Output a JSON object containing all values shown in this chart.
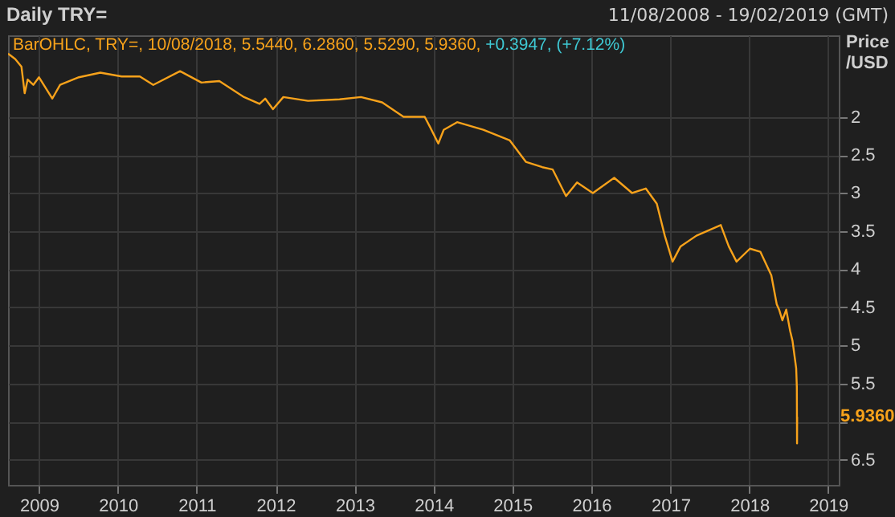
{
  "chart_data": {
    "type": "line",
    "title": "Daily TRY=",
    "subtitle": "11/08/2008 - 19/02/2019 (GMT)",
    "ylabel": "Price /USD",
    "annotations": [
      "BarOHLC, TRY=, 10/08/2018, 5.5440, 6.2860, 5.5290, 5.9360,",
      "+0.3947, (+7.12%)",
      {
        "text": "5.9360",
        "x": "2018-08-10",
        "y": 5.936
      }
    ],
    "series": [
      {
        "color": "#f7a21b",
        "x": [
          "2008-08-11",
          "2008-09-13",
          "2008-10-12",
          "2008-10-27",
          "2008-11-10",
          "2008-12-06",
          "2009-01-01",
          "2009-03-04",
          "2009-04-09",
          "2009-07-05",
          "2009-10-12",
          "2010-01-19",
          "2010-04-13",
          "2010-06-14",
          "2010-10-16",
          "2011-01-23",
          "2011-04-16",
          "2011-08-08",
          "2011-10-19",
          "2011-11-14",
          "2011-12-20",
          "2012-02-06",
          "2012-05-30",
          "2012-10-23",
          "2013-01-30",
          "2013-05-08",
          "2013-08-15",
          "2013-11-21",
          "2013-12-17",
          "2014-01-23",
          "2014-02-17",
          "2014-04-20",
          "2014-08-19",
          "2014-12-20",
          "2015-03-04",
          "2015-05-19",
          "2015-07-06",
          "2015-09-06",
          "2015-10-27",
          "2016-01-08",
          "2016-04-16",
          "2016-07-08",
          "2016-09-09",
          "2016-10-30",
          "2016-12-06",
          "2017-01-11",
          "2017-02-17",
          "2017-05-01",
          "2017-08-22",
          "2017-09-28",
          "2017-11-03",
          "2018-01-04",
          "2018-02-21",
          "2018-04-13",
          "2018-05-08",
          "2018-05-19",
          "2018-06-03",
          "2018-06-21",
          "2018-07-09",
          "2018-07-20",
          "2018-08-06",
          "2018-08-09",
          "2018-08-10T00:00",
          "2018-08-10T12:00"
        ],
        "values": [
          1.17,
          1.24,
          1.34,
          1.69,
          1.51,
          1.58,
          1.48,
          1.76,
          1.58,
          1.48,
          1.42,
          1.47,
          1.47,
          1.58,
          1.4,
          1.55,
          1.53,
          1.74,
          1.83,
          1.76,
          1.9,
          1.74,
          1.79,
          1.77,
          1.74,
          1.81,
          2.0,
          2.0,
          2.14,
          2.35,
          2.17,
          2.07,
          2.17,
          2.31,
          2.59,
          2.66,
          2.69,
          3.04,
          2.86,
          3.0,
          2.8,
          3.0,
          2.94,
          3.14,
          3.56,
          3.9,
          3.7,
          3.56,
          3.42,
          3.7,
          3.9,
          3.73,
          3.77,
          4.08,
          4.46,
          4.53,
          4.67,
          4.53,
          4.81,
          4.94,
          5.3,
          5.544,
          6.286,
          5.936
        ]
      }
    ],
    "xlim": [
      "2008-08-11",
      "2019-02-19"
    ],
    "xticks": [
      "2009",
      "2010",
      "2011",
      "2012",
      "2013",
      "2014",
      "2015",
      "2016",
      "2017",
      "2018",
      "2019"
    ],
    "ylim": [
      6.83,
      0.93
    ],
    "yticks": [
      2,
      2.5,
      3,
      3.5,
      4,
      4.5,
      5,
      5.5,
      {
        "value": 6,
        "label": null
      },
      6.5
    ],
    "grid": true
  }
}
